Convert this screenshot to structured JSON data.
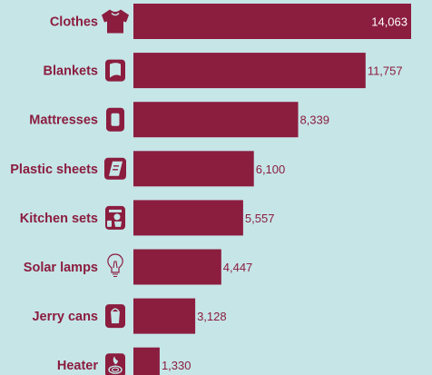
{
  "chart_data": {
    "type": "bar",
    "orientation": "horizontal",
    "title": "",
    "xlabel": "",
    "ylabel": "",
    "categories": [
      "Clothes",
      "Blankets",
      "Mattresses",
      "Plastic sheets",
      "Kitchen sets",
      "Solar lamps",
      "Jerry cans",
      "Heater"
    ],
    "values": [
      14063,
      11757,
      8339,
      6100,
      5557,
      4447,
      3128,
      1330
    ],
    "value_labels": [
      "14,063",
      "11,757",
      "8,339",
      "6,100",
      "5,557",
      "4,447",
      "3,128",
      "1,330"
    ],
    "icons": [
      "t-shirt-icon",
      "blanket-icon",
      "mattress-icon",
      "plastic-sheet-icon",
      "kitchen-set-icon",
      "solar-lamp-icon",
      "jerry-can-icon",
      "heater-icon"
    ],
    "xlim": [
      0,
      14063
    ],
    "grid": false,
    "legend": "none",
    "colors": {
      "background": "#c6e5e7",
      "bar": "#8b1d3f",
      "text": "#8b1d3f",
      "inside_label": "#ffffff"
    }
  }
}
